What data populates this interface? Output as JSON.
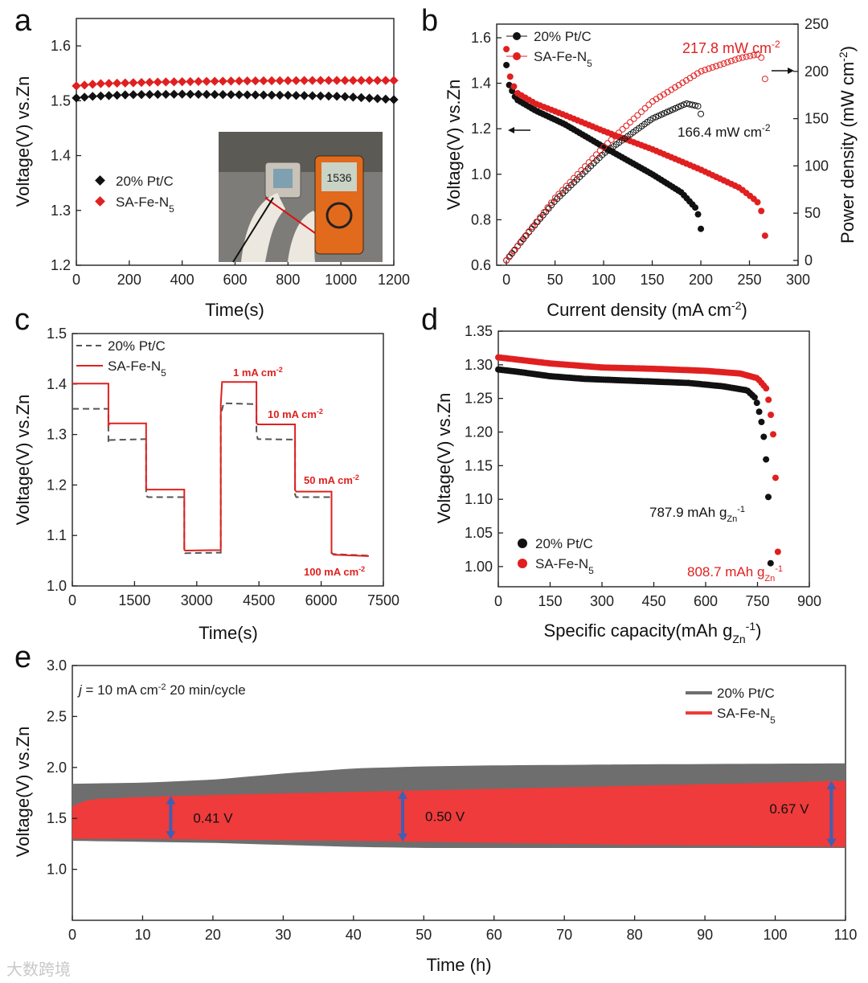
{
  "colors": {
    "black": "#111111",
    "red": "#e02020",
    "gray": "#6e6e6e",
    "bandRed": "#ef3b3b",
    "arrow": "#3f5fb3"
  },
  "watermark": "大数跨境",
  "chart_data": [
    {
      "panel": "a",
      "type": "scatter",
      "xlabel": "Time(s)",
      "ylabel": "Voltage(V) vs.Zn",
      "xlim": [
        0,
        1200
      ],
      "ylim": [
        1.2,
        1.65
      ],
      "xticks": [
        "0",
        "200",
        "400",
        "600",
        "800",
        "1000",
        "1200"
      ],
      "yticks": [
        "1.2",
        "1.3",
        "1.4",
        "1.5",
        "1.6"
      ],
      "photo_display": "1536",
      "series": [
        {
          "name": "20% Pt/C",
          "color": "#111111",
          "x_start": 0,
          "x_end": 1200,
          "count": 40,
          "points": [
            [
              0,
              1.505
            ],
            [
              60,
              1.508
            ],
            [
              200,
              1.511
            ],
            [
              400,
              1.512
            ],
            [
              600,
              1.511
            ],
            [
              800,
              1.51
            ],
            [
              1000,
              1.508
            ],
            [
              1200,
              1.502
            ]
          ]
        },
        {
          "name": "SA-Fe-N5",
          "color": "#e02020",
          "x_start": 0,
          "x_end": 1200,
          "count": 40,
          "points": [
            [
              0,
              1.527
            ],
            [
              80,
              1.531
            ],
            [
              300,
              1.534
            ],
            [
              600,
              1.536
            ],
            [
              900,
              1.537
            ],
            [
              1200,
              1.537
            ]
          ]
        }
      ]
    },
    {
      "panel": "b",
      "type": "line",
      "xlabel": "Current density (mA cm-2)",
      "ylabel": "Voltage(V) vs.Zn",
      "ylabel2": "Power density (mW cm-2)",
      "xlim": [
        -10,
        300
      ],
      "ylim": [
        0.6,
        1.66
      ],
      "y2lim": [
        0,
        250
      ],
      "xticks": [
        "0",
        "50",
        "100",
        "150",
        "200",
        "250",
        "300"
      ],
      "yticks": [
        "0.6",
        "0.8",
        "1.0",
        "1.2",
        "1.4",
        "1.6"
      ],
      "y2ticks": [
        "0",
        "50",
        "100",
        "150",
        "200",
        "250"
      ],
      "annotations": [
        {
          "text": "217.8 mW cm-2",
          "color": "#e02020"
        },
        {
          "text": "166.4 mW cm-2",
          "color": "#111111"
        }
      ],
      "series": [
        {
          "name": "20% Pt/C",
          "kind": "polarization",
          "color": "#111111",
          "points": [
            [
              0,
              1.48
            ],
            [
              2,
              1.4
            ],
            [
              10,
              1.33
            ],
            [
              30,
              1.28
            ],
            [
              60,
              1.22
            ],
            [
              100,
              1.12
            ],
            [
              150,
              1.0
            ],
            [
              180,
              0.92
            ],
            [
              195,
              0.85
            ],
            [
              199,
              0.8
            ],
            [
              200,
              0.76
            ]
          ]
        },
        {
          "name": "SA-Fe-N5",
          "kind": "polarization",
          "color": "#e02020",
          "points": [
            [
              0,
              1.55
            ],
            [
              2,
              1.45
            ],
            [
              10,
              1.36
            ],
            [
              30,
              1.31
            ],
            [
              60,
              1.26
            ],
            [
              100,
              1.19
            ],
            [
              150,
              1.11
            ],
            [
              200,
              1.02
            ],
            [
              240,
              0.94
            ],
            [
              258,
              0.88
            ],
            [
              264,
              0.82
            ],
            [
              265,
              0.77
            ],
            [
              266,
              0.73
            ]
          ]
        },
        {
          "name": "20% Pt/C power",
          "kind": "power",
          "color": "#111111",
          "points": [
            [
              0,
              0
            ],
            [
              20,
              26
            ],
            [
              50,
              63
            ],
            [
              100,
              113
            ],
            [
              150,
              150
            ],
            [
              185,
              166
            ],
            [
              198,
              163
            ],
            [
              200,
              155
            ]
          ]
        },
        {
          "name": "SA-Fe-N5 power",
          "kind": "power",
          "color": "#e02020",
          "points": [
            [
              0,
              0
            ],
            [
              25,
              33
            ],
            [
              50,
              66
            ],
            [
              100,
              120
            ],
            [
              150,
              168
            ],
            [
              200,
              200
            ],
            [
              240,
              214
            ],
            [
              258,
              218
            ],
            [
              264,
              213
            ],
            [
              266,
              192
            ]
          ]
        }
      ]
    },
    {
      "panel": "c",
      "type": "line",
      "xlabel": "Time(s)",
      "ylabel": "Voltage(V) vs.Zn",
      "xlim": [
        0,
        7500
      ],
      "ylim": [
        1.0,
        1.5
      ],
      "xticks": [
        "0",
        "1500",
        "3000",
        "4500",
        "6000",
        "7500"
      ],
      "yticks": [
        "1.0",
        "1.1",
        "1.2",
        "1.3",
        "1.4",
        "1.5"
      ],
      "step_labels": [
        "1 mA cm-2",
        "10 mA cm-2",
        "50 mA cm-2",
        "100 mA cm-2"
      ],
      "series": [
        {
          "name": "20% Pt/C",
          "color": "#555555",
          "dashed": true,
          "points": [
            [
              0,
              1.351
            ],
            [
              870,
              1.351
            ],
            [
              870,
              1.283
            ],
            [
              900,
              1.289
            ],
            [
              1780,
              1.291
            ],
            [
              1780,
              1.179
            ],
            [
              1820,
              1.176
            ],
            [
              2700,
              1.176
            ],
            [
              2700,
              1.068
            ],
            [
              2720,
              1.065
            ],
            [
              3580,
              1.066
            ],
            [
              3580,
              1.34
            ],
            [
              3650,
              1.362
            ],
            [
              4440,
              1.36
            ],
            [
              4440,
              1.302
            ],
            [
              4470,
              1.291
            ],
            [
              5370,
              1.29
            ],
            [
              5370,
              1.181
            ],
            [
              5400,
              1.176
            ],
            [
              6250,
              1.176
            ],
            [
              6250,
              1.065
            ],
            [
              6300,
              1.063
            ],
            [
              7150,
              1.06
            ]
          ]
        },
        {
          "name": "SA-Fe-N5",
          "color": "#e02020",
          "dashed": false,
          "points": [
            [
              0,
              1.401
            ],
            [
              870,
              1.401
            ],
            [
              870,
              1.318
            ],
            [
              900,
              1.322
            ],
            [
              1780,
              1.322
            ],
            [
              1780,
              1.194
            ],
            [
              1800,
              1.191
            ],
            [
              2700,
              1.191
            ],
            [
              2700,
              1.072
            ],
            [
              2720,
              1.07
            ],
            [
              3580,
              1.071
            ],
            [
              3580,
              1.36
            ],
            [
              3610,
              1.404
            ],
            [
              4440,
              1.404
            ],
            [
              4440,
              1.323
            ],
            [
              4470,
              1.32
            ],
            [
              5370,
              1.32
            ],
            [
              5370,
              1.19
            ],
            [
              5400,
              1.187
            ],
            [
              6250,
              1.187
            ],
            [
              6250,
              1.066
            ],
            [
              6300,
              1.062
            ],
            [
              7150,
              1.059
            ]
          ]
        }
      ]
    },
    {
      "panel": "d",
      "type": "scatter",
      "xlabel": "Specific capacity(mAh gZn-1)",
      "ylabel": "Voltage(V) vs.Zn",
      "xlim": [
        0,
        900
      ],
      "ylim": [
        0.97,
        1.35
      ],
      "xticks": [
        "0",
        "150",
        "300",
        "450",
        "600",
        "750",
        "900"
      ],
      "yticks": [
        "1.00",
        "1.05",
        "1.10",
        "1.15",
        "1.20",
        "1.25",
        "1.30",
        "1.35"
      ],
      "annotations": [
        {
          "text": "787.9 mAh gZn-1",
          "color": "#111111"
        },
        {
          "text": "808.7 mAh gZn-1",
          "color": "#e02020"
        }
      ],
      "series": [
        {
          "name": "20% Pt/C",
          "color": "#111111",
          "points": [
            [
              0,
              1.293
            ],
            [
              50,
              1.29
            ],
            [
              150,
              1.283
            ],
            [
              250,
              1.279
            ],
            [
              400,
              1.276
            ],
            [
              550,
              1.273
            ],
            [
              650,
              1.268
            ],
            [
              720,
              1.262
            ],
            [
              745,
              1.25
            ],
            [
              760,
              1.22
            ],
            [
              772,
              1.18
            ],
            [
              780,
              1.12
            ],
            [
              785,
              1.06
            ],
            [
              788,
              1.005
            ]
          ]
        },
        {
          "name": "SA-Fe-N5",
          "color": "#e02020",
          "points": [
            [
              0,
              1.311
            ],
            [
              50,
              1.308
            ],
            [
              150,
              1.302
            ],
            [
              300,
              1.296
            ],
            [
              450,
              1.294
            ],
            [
              600,
              1.291
            ],
            [
              700,
              1.287
            ],
            [
              750,
              1.28
            ],
            [
              775,
              1.265
            ],
            [
              785,
              1.24
            ],
            [
              795,
              1.2
            ],
            [
              801,
              1.15
            ],
            [
              805,
              1.09
            ],
            [
              808,
              1.04
            ],
            [
              809,
              1.022
            ]
          ]
        }
      ]
    },
    {
      "panel": "e",
      "type": "area",
      "xlabel": "Time (h)",
      "ylabel": "Voltage(V) vs.Zn",
      "xlim": [
        0,
        110
      ],
      "ylim": [
        0.5,
        3.0
      ],
      "xticks": [
        "0",
        "10",
        "20",
        "30",
        "40",
        "50",
        "60",
        "70",
        "80",
        "90",
        "100",
        "110"
      ],
      "yticks": [
        "1.0",
        "1.5",
        "2.0",
        "2.5",
        "3.0"
      ],
      "condition_j": "j",
      "condition_rest": " = 10 mA cm-2   20 min/cycle",
      "gaps": [
        {
          "t": 14,
          "label": "0.41 V"
        },
        {
          "t": 47,
          "label": "0.50 V"
        },
        {
          "t": 108,
          "label": "0.67 V"
        }
      ],
      "series": [
        {
          "name": "20% Pt/C",
          "color": "#6e6e6e",
          "upper": [
            [
              0,
              1.84
            ],
            [
              10,
              1.85
            ],
            [
              20,
              1.88
            ],
            [
              30,
              1.94
            ],
            [
              40,
              1.99
            ],
            [
              50,
              2.01
            ],
            [
              60,
              2.02
            ],
            [
              80,
              2.03
            ],
            [
              110,
              2.04
            ]
          ],
          "lower": [
            [
              0,
              1.28
            ],
            [
              10,
              1.27
            ],
            [
              20,
              1.26
            ],
            [
              30,
              1.24
            ],
            [
              40,
              1.22
            ],
            [
              50,
              1.21
            ],
            [
              60,
              1.21
            ],
            [
              80,
              1.21
            ],
            [
              110,
              1.21
            ]
          ]
        },
        {
          "name": "SA-Fe-N5",
          "color": "#ef3b3b",
          "upper": [
            [
              0,
              1.62
            ],
            [
              1,
              1.66
            ],
            [
              3,
              1.69
            ],
            [
              10,
              1.71
            ],
            [
              20,
              1.73
            ],
            [
              40,
              1.76
            ],
            [
              60,
              1.79
            ],
            [
              80,
              1.82
            ],
            [
              100,
              1.85
            ],
            [
              110,
              1.87
            ]
          ],
          "lower": [
            [
              0,
              1.3
            ],
            [
              10,
              1.3
            ],
            [
              20,
              1.29
            ],
            [
              40,
              1.28
            ],
            [
              60,
              1.26
            ],
            [
              80,
              1.24
            ],
            [
              100,
              1.23
            ],
            [
              110,
              1.22
            ]
          ]
        }
      ]
    }
  ]
}
